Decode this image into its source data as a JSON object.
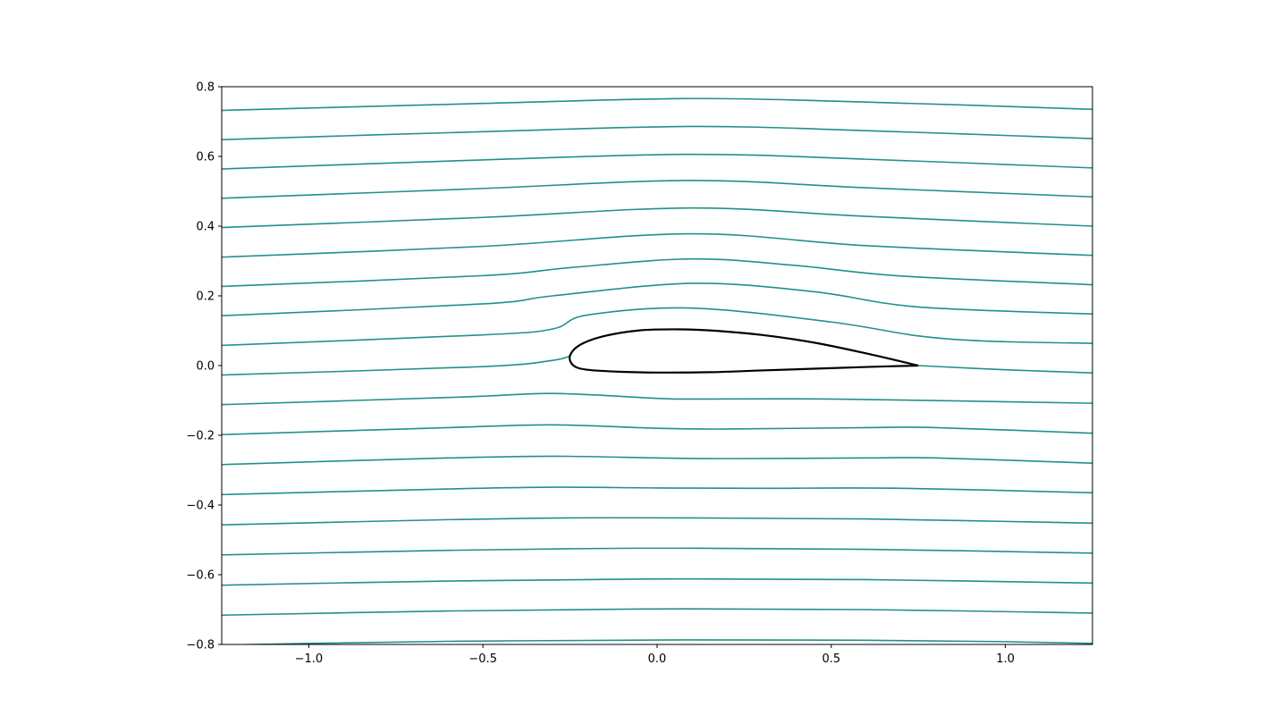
{
  "chart_data": {
    "type": "line",
    "title": "",
    "xlabel": "",
    "ylabel": "",
    "xlim": [
      -1.25,
      1.25
    ],
    "ylim": [
      -0.8,
      0.8
    ],
    "grid": false,
    "xticks": [
      -1.0,
      -0.5,
      0.0,
      0.5,
      1.0
    ],
    "xtick_labels": [
      "−1.0",
      "−0.5",
      "0.0",
      "0.5",
      "1.0"
    ],
    "yticks": [
      -0.8,
      -0.6,
      -0.4,
      -0.2,
      0.0,
      0.2,
      0.4,
      0.6,
      0.8
    ],
    "ytick_labels": [
      "−0.8",
      "−0.6",
      "−0.4",
      "−0.2",
      "0.0",
      "0.2",
      "0.4",
      "0.6",
      "0.8"
    ],
    "streamline_color": "#22908a",
    "airfoil_color": "#000000",
    "streamlines": [
      {
        "name": "streamline-1",
        "x": [
          -1.25,
          -0.5,
          0.1,
          0.6,
          1.25
        ],
        "y": [
          0.732,
          0.752,
          0.766,
          0.756,
          0.735
        ]
      },
      {
        "name": "streamline-2",
        "x": [
          -1.25,
          -0.5,
          0.1,
          0.6,
          1.25
        ],
        "y": [
          0.648,
          0.671,
          0.686,
          0.674,
          0.651
        ]
      },
      {
        "name": "streamline-3",
        "x": [
          -1.25,
          -0.5,
          0.1,
          0.6,
          1.25
        ],
        "y": [
          0.564,
          0.59,
          0.606,
          0.592,
          0.567
        ]
      },
      {
        "name": "streamline-4",
        "x": [
          -1.25,
          -0.5,
          0.1,
          0.6,
          1.25
        ],
        "y": [
          0.48,
          0.508,
          0.531,
          0.51,
          0.484
        ]
      },
      {
        "name": "streamline-5",
        "x": [
          -1.25,
          -0.5,
          0.1,
          0.6,
          1.25
        ],
        "y": [
          0.396,
          0.425,
          0.452,
          0.428,
          0.4
        ]
      },
      {
        "name": "streamline-6",
        "x": [
          -1.25,
          -0.5,
          0.1,
          0.6,
          1.25
        ],
        "y": [
          0.311,
          0.342,
          0.378,
          0.344,
          0.316
        ]
      },
      {
        "name": "streamline-7",
        "x": [
          -1.25,
          -0.5,
          -0.25,
          0.1,
          0.4,
          0.7,
          1.25
        ],
        "y": [
          0.227,
          0.258,
          0.281,
          0.306,
          0.287,
          0.257,
          0.232
        ]
      },
      {
        "name": "streamline-8",
        "x": [
          -1.25,
          -0.5,
          -0.3,
          0.1,
          0.45,
          0.75,
          1.25
        ],
        "y": [
          0.143,
          0.177,
          0.2,
          0.236,
          0.212,
          0.168,
          0.148
        ]
      },
      {
        "name": "streamline-9",
        "x": [
          -1.25,
          -0.5,
          -0.3,
          -0.2,
          0.1,
          0.5,
          0.75,
          0.95,
          1.25
        ],
        "y": [
          0.058,
          0.088,
          0.105,
          0.145,
          0.165,
          0.125,
          0.085,
          0.07,
          0.064
        ]
      },
      {
        "name": "streamline-10",
        "x": [
          -1.25,
          -0.5,
          -0.3,
          -0.25
        ],
        "y": [
          -0.027,
          -0.003,
          0.015,
          0.028
        ]
      },
      {
        "name": "streamline-10-wake",
        "x": [
          0.75,
          1.0,
          1.25
        ],
        "y": [
          0.0,
          -0.012,
          -0.021
        ]
      },
      {
        "name": "streamline-11",
        "x": [
          -1.25,
          -0.55,
          -0.3,
          0.0,
          0.1,
          0.5,
          1.25
        ],
        "y": [
          -0.112,
          -0.09,
          -0.08,
          -0.094,
          -0.096,
          -0.096,
          -0.108
        ]
      },
      {
        "name": "streamline-12",
        "x": [
          -1.25,
          -0.6,
          -0.3,
          0.0,
          0.2,
          0.6,
          0.8,
          1.25
        ],
        "y": [
          -0.198,
          -0.178,
          -0.17,
          -0.18,
          -0.182,
          -0.178,
          -0.178,
          -0.194
        ]
      },
      {
        "name": "streamline-13",
        "x": [
          -1.25,
          -0.6,
          -0.3,
          0.0,
          0.2,
          0.6,
          0.8,
          1.25
        ],
        "y": [
          -0.284,
          -0.265,
          -0.26,
          -0.265,
          -0.267,
          -0.265,
          -0.265,
          -0.28
        ]
      },
      {
        "name": "streamline-14",
        "x": [
          -1.25,
          -0.6,
          -0.3,
          0.0,
          0.3,
          0.7,
          1.25
        ],
        "y": [
          -0.37,
          -0.354,
          -0.349,
          -0.351,
          -0.352,
          -0.352,
          -0.365
        ]
      },
      {
        "name": "streamline-15",
        "x": [
          -1.25,
          -0.6,
          -0.25,
          0.1,
          0.6,
          1.25
        ],
        "y": [
          -0.457,
          -0.442,
          -0.437,
          -0.437,
          -0.44,
          -0.452
        ]
      },
      {
        "name": "streamline-16",
        "x": [
          -1.25,
          -0.6,
          -0.2,
          0.1,
          0.6,
          1.25
        ],
        "y": [
          -0.543,
          -0.53,
          -0.525,
          -0.524,
          -0.527,
          -0.538
        ]
      },
      {
        "name": "streamline-17",
        "x": [
          -1.25,
          -0.6,
          -0.1,
          0.1,
          0.6,
          1.25
        ],
        "y": [
          -0.63,
          -0.618,
          -0.613,
          -0.612,
          -0.614,
          -0.624
        ]
      },
      {
        "name": "streamline-18",
        "x": [
          -1.25,
          -0.6,
          -0.1,
          0.1,
          0.6,
          1.25
        ],
        "y": [
          -0.716,
          -0.704,
          -0.699,
          -0.698,
          -0.7,
          -0.71
        ]
      },
      {
        "name": "streamline-19",
        "x": [
          -1.25,
          -1.0,
          -0.6,
          -0.1,
          0.1,
          0.6,
          1.0,
          1.25
        ],
        "y": [
          -0.802,
          -0.797,
          -0.791,
          -0.788,
          -0.787,
          -0.788,
          -0.792,
          -0.797
        ]
      }
    ],
    "airfoil": {
      "name": "airfoil",
      "x": [
        0.75,
        0.6,
        0.45,
        0.3,
        0.15,
        0.05,
        -0.05,
        -0.15,
        -0.22,
        -0.25,
        -0.24,
        -0.2,
        -0.1,
        0.0,
        0.15,
        0.3,
        0.45,
        0.6,
        0.75
      ],
      "y": [
        0.0,
        0.035,
        0.066,
        0.088,
        0.101,
        0.104,
        0.101,
        0.085,
        0.06,
        0.028,
        0.0,
        -0.012,
        -0.018,
        -0.02,
        -0.019,
        -0.014,
        -0.009,
        -0.004,
        0.0
      ]
    }
  }
}
